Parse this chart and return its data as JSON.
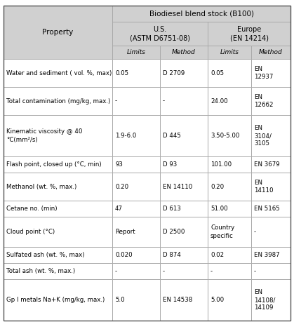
{
  "title": "Biodiesel blend stock (B100)",
  "property_header": "Property",
  "us_header_line1": "U.S.",
  "us_header_line2": "(ASTM D6751-08)",
  "eu_header_line1": "Europe",
  "eu_header_line2": "(EN 14214)",
  "limits_label": "Limits",
  "method_label": "Method",
  "rows": [
    [
      "Water and sediment ( vol. %, max)",
      "0.05",
      "D 2709",
      "0.05",
      "EN\n12937"
    ],
    [
      "Total contamination (mg/kg, max.)",
      "-",
      "-",
      "24.00",
      "EN\n12662"
    ],
    [
      "Kinematic viscosity @ 40\n°C(mm²/s)",
      "1.9-6.0",
      "D 445",
      "3.50-5.00",
      "EN\n3104/\n3105"
    ],
    [
      "Flash point, closed up (°C, min)",
      "93",
      "D 93",
      "101.00",
      "EN 3679"
    ],
    [
      "Methanol (wt. %, max.)",
      "0.20",
      "EN 14110",
      "0.20",
      "EN\n14110"
    ],
    [
      "Cetane no. (min)",
      "47",
      "D 613",
      "51.00",
      "EN 5165"
    ],
    [
      "Cloud point (°C)",
      "Report",
      "D 2500",
      "Country\nspecific",
      "-"
    ],
    [
      "Sulfated ash (wt. %, max)",
      "0.020",
      "D 874",
      "0.02",
      "EN 3987"
    ],
    [
      "Total ash (wt. %, max.)",
      "-",
      "-",
      "-",
      "-"
    ],
    [
      "Gp I metals Na+K (mg/kg, max.)",
      "5.0",
      "EN 14538",
      "5.00",
      "EN\n14108/\n14109"
    ]
  ],
  "gray_bg": "#d0d0d0",
  "white_bg": "#ffffff",
  "border_color": "#aaaaaa",
  "text_color": "#000000",
  "fig_width": 4.19,
  "fig_height": 4.69,
  "dpi": 100
}
